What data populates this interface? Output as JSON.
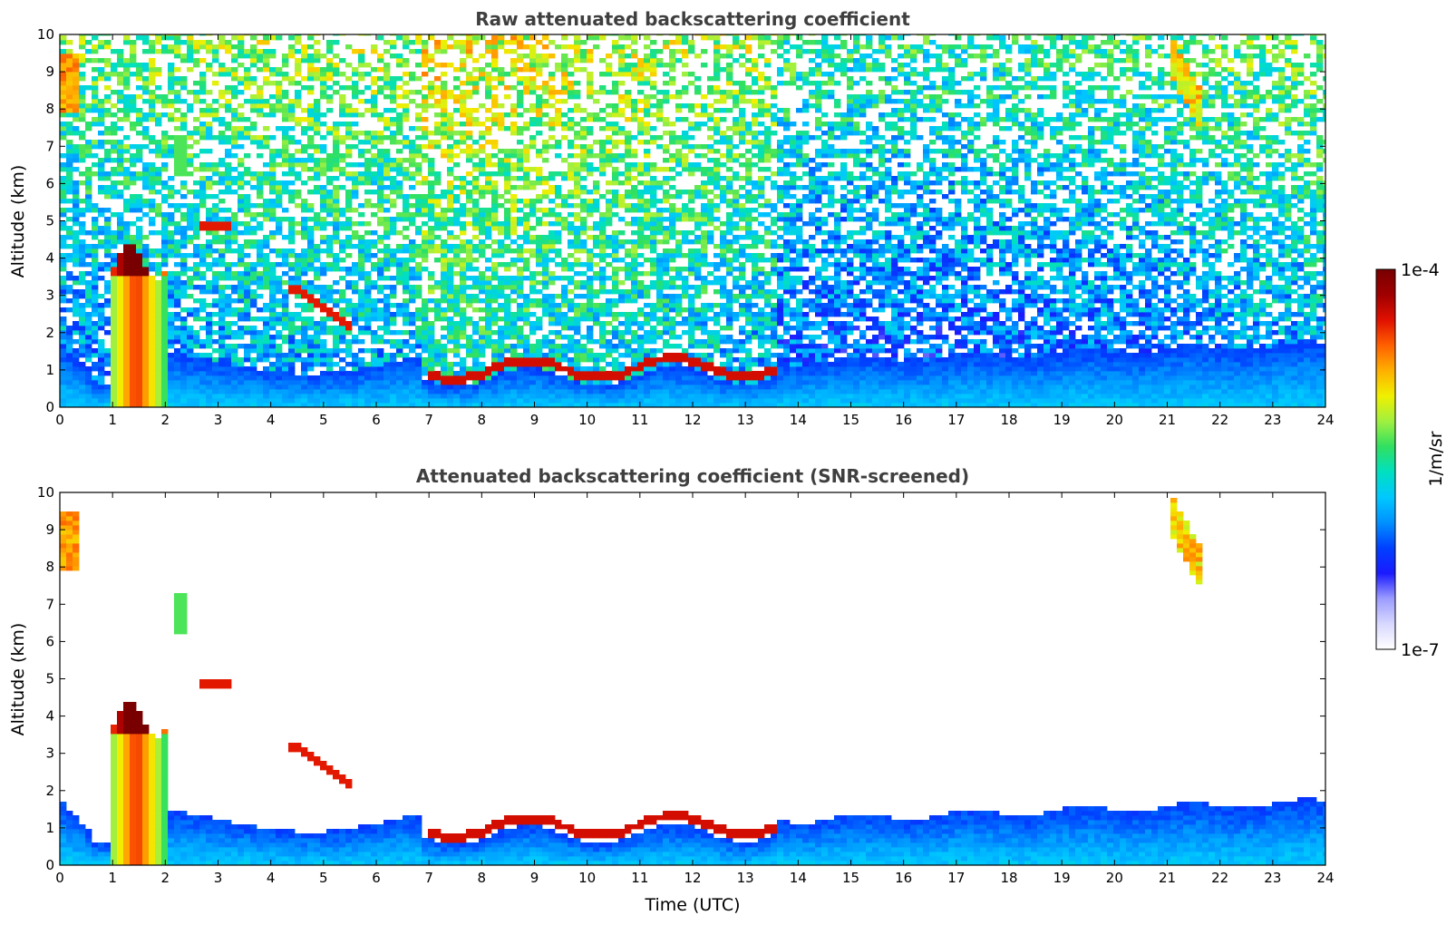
{
  "colorbar": {
    "max_label": "1e-4",
    "min_label": "1e-7",
    "unit_label": "1/m/sr",
    "colormap": [
      "#ffffff",
      "#d8d8ff",
      "#9c9cff",
      "#1a1aff",
      "#0040ff",
      "#0090ff",
      "#00c8ff",
      "#00e0c0",
      "#30e060",
      "#a0f040",
      "#f0f000",
      "#ffb000",
      "#ff6000",
      "#e01000",
      "#a00000",
      "#780000"
    ]
  },
  "chart_data": [
    {
      "type": "heatmap",
      "title": "Raw attenuated backscattering coefficient",
      "xlabel": "",
      "ylabel": "Altitude (km)",
      "xlim": [
        0,
        24
      ],
      "ylim": [
        0,
        10
      ],
      "xticks": [
        "0",
        "1",
        "2",
        "3",
        "4",
        "5",
        "6",
        "7",
        "8",
        "9",
        "10",
        "11",
        "12",
        "13",
        "14",
        "15",
        "16",
        "17",
        "18",
        "19",
        "20",
        "21",
        "22",
        "23",
        "24"
      ],
      "yticks": [
        "0",
        "1",
        "2",
        "3",
        "4",
        "5",
        "6",
        "7",
        "8",
        "9",
        "10"
      ],
      "color_scale": {
        "min": 1e-07,
        "max": 0.0001,
        "scale": "log",
        "unit": "1/m/sr"
      },
      "features": [
        {
          "name": "planetary boundary layer",
          "time_range": [
            0,
            24
          ],
          "altitude_top": [
            0.5,
            1.8
          ]
        },
        {
          "name": "low cloud (deep)",
          "time_range": [
            1.0,
            2.0
          ],
          "altitude_range": [
            0,
            4.5
          ]
        },
        {
          "name": "cloud base layer",
          "time_range": [
            7.0,
            13.6
          ],
          "altitude_range": [
            0.7,
            1.3
          ]
        },
        {
          "name": "cirrus",
          "time_range": [
            0,
            0.3
          ],
          "altitude_range": [
            7.8,
            9.5
          ]
        },
        {
          "name": "cirrus",
          "time_range": [
            21.0,
            21.7
          ],
          "altitude_range": [
            7.6,
            10
          ]
        },
        {
          "name": "mid-level cloud",
          "time_range": [
            2.6,
            3.2
          ],
          "altitude_range": [
            4.7,
            5.0
          ]
        },
        {
          "name": "mid-level cloud",
          "time_range": [
            4.2,
            5.5
          ],
          "altitude_range": [
            2.0,
            3.3
          ]
        }
      ]
    },
    {
      "type": "heatmap",
      "title": "Attenuated backscattering coefficient (SNR-screened)",
      "xlabel": "Time (UTC)",
      "ylabel": "Altitude (km)",
      "xlim": [
        0,
        24
      ],
      "ylim": [
        0,
        10
      ],
      "xticks": [
        "0",
        "1",
        "2",
        "3",
        "4",
        "5",
        "6",
        "7",
        "8",
        "9",
        "10",
        "11",
        "12",
        "13",
        "14",
        "15",
        "16",
        "17",
        "18",
        "19",
        "20",
        "21",
        "22",
        "23",
        "24"
      ],
      "yticks": [
        "0",
        "1",
        "2",
        "3",
        "4",
        "5",
        "6",
        "7",
        "8",
        "9",
        "10"
      ],
      "color_scale": {
        "min": 1e-07,
        "max": 0.0001,
        "scale": "log",
        "unit": "1/m/sr"
      },
      "features": [
        {
          "name": "planetary boundary layer",
          "time_range": [
            0,
            24
          ],
          "altitude_top": [
            0.5,
            2.3
          ]
        },
        {
          "name": "low cloud (deep)",
          "time_range": [
            1.0,
            2.0
          ],
          "altitude_range": [
            0,
            4.5
          ]
        },
        {
          "name": "cloud base layer",
          "time_range": [
            7.0,
            13.6
          ],
          "altitude_range": [
            0.7,
            1.4
          ]
        },
        {
          "name": "cirrus",
          "time_range": [
            0,
            0.3
          ],
          "altitude_range": [
            8.0,
            9.4
          ]
        },
        {
          "name": "cirrus",
          "time_range": [
            21.2,
            21.7
          ],
          "altitude_range": [
            7.7,
            10
          ]
        }
      ]
    }
  ]
}
